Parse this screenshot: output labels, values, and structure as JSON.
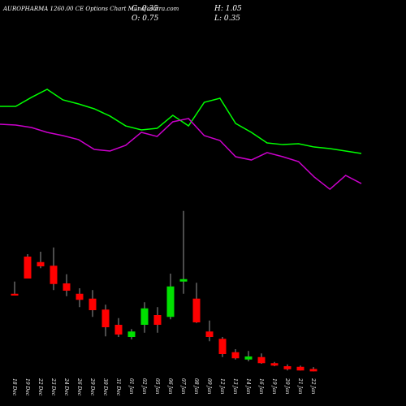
{
  "chart_data": {
    "type": "candlestick",
    "title": "AUROPHARMA 1260.00 CE Options Chart Munafasutra.com",
    "stats": [
      "C: 0.35",
      "H: 1.05",
      "O: 0.75",
      "L: 0.35"
    ],
    "categories": [
      "18 Dec",
      "19 Dec",
      "22 Dec",
      "23 Dec",
      "24 Dec",
      "26 Dec",
      "29 Dec",
      "30 Dec",
      "31 Dec",
      "01 Jan",
      "02 Jan",
      "05 Jan",
      "06 Jan",
      "07 Jan",
      "08 Jan",
      "09 Jan",
      "12 Jan",
      "13 Jan",
      "14 Jan",
      "16 Jan",
      "19 Jan",
      "20 Jan",
      "21 Jan",
      "22 Jan"
    ],
    "open": [
      13.1,
      19.2,
      18.3,
      17.7,
      14.8,
      13.1,
      12.3,
      10.5,
      8.0,
      6.0,
      8.0,
      9.6,
      9.3,
      15.1,
      12.3,
      6.9,
      5.7,
      3.5,
      2.3,
      2.7,
      1.7,
      1.2,
      1.1,
      0.75
    ],
    "high": [
      15.1,
      19.6,
      20.0,
      20.7,
      16.3,
      14.0,
      13.7,
      11.3,
      9.1,
      7.3,
      11.7,
      10.9,
      16.4,
      26.7,
      14.9,
      8.7,
      6.0,
      4.0,
      3.7,
      3.3,
      1.9,
      1.5,
      1.3,
      1.05
    ],
    "low": [
      12.8,
      15.6,
      17.3,
      13.7,
      12.7,
      10.9,
      9.3,
      6.1,
      6.0,
      5.6,
      6.7,
      6.7,
      8.9,
      13.1,
      8.3,
      5.3,
      2.7,
      2.3,
      2.0,
      1.6,
      1.2,
      0.5,
      0.5,
      0.35
    ],
    "close": [
      12.8,
      15.6,
      17.6,
      14.7,
      13.6,
      12.1,
      10.4,
      7.6,
      6.4,
      6.9,
      10.7,
      8.0,
      14.3,
      15.5,
      8.4,
      6.0,
      3.2,
      2.5,
      2.8,
      1.7,
      1.3,
      0.7,
      0.5,
      0.35
    ],
    "up_color": "#00e000",
    "down_color": "#ff0000",
    "ylim": [
      0,
      28
    ],
    "y2lim": [
      0,
      100
    ],
    "series": [
      {
        "color": "#00ff00",
        "axis": "y2",
        "values": [
          80,
          80,
          88.5,
          96.2,
          86.2,
          82.3,
          77.7,
          70.8,
          61.5,
          57.7,
          59.2,
          71.5,
          61.5,
          83.8,
          87.7,
          63.8,
          55.4,
          45.4,
          43.8,
          44.6,
          41.5,
          40,
          37.7,
          35.4
        ]
      },
      {
        "color": "#cc00cc",
        "axis": "y2",
        "values": [
          63.1,
          62.3,
          60,
          55.4,
          52.3,
          48.5,
          39.2,
          37.7,
          43.1,
          55.4,
          51.5,
          65.4,
          68.5,
          52.3,
          47.7,
          32.3,
          29.2,
          36.2,
          32.3,
          27.7,
          13.1,
          1.5,
          14.6,
          6.9
        ]
      }
    ]
  }
}
